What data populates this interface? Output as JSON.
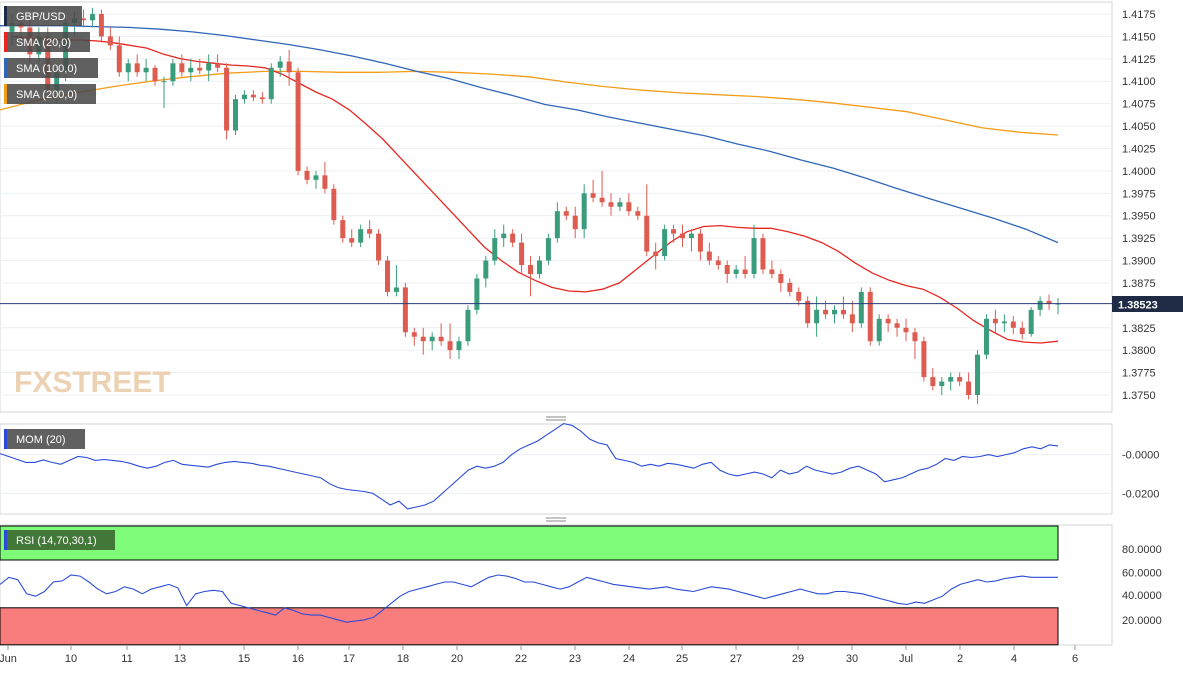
{
  "symbol": "GBP/USD",
  "watermark": "FXSTREET",
  "colors": {
    "up": "#3a9c7c",
    "down": "#de5b4f",
    "sma20": "#e8261f",
    "sma100": "#2f66b8",
    "sma200": "#f39c1a",
    "mom": "#2a4bd7",
    "rsi": "#2a4bd7",
    "price_line": "#2a3a7a",
    "overbought_zone": "#7dfb79",
    "oversold_zone": "#fa7d7d"
  },
  "legend": [
    {
      "label": "GBP/USD",
      "color": "#1e2a44"
    },
    {
      "label": "SMA (20,0)",
      "color": "#e8261f"
    },
    {
      "label": "SMA (100,0)",
      "color": "#2f66b8"
    },
    {
      "label": "SMA (200,0)",
      "color": "#f39c1a"
    }
  ],
  "current_price": "1.38523",
  "price_axis_ticks": [
    "1.4175",
    "1.4150",
    "1.4125",
    "1.4100",
    "1.4075",
    "1.4050",
    "1.4025",
    "1.4000",
    "1.3975",
    "1.3950",
    "1.3925",
    "1.3900",
    "1.3875",
    "1.3825",
    "1.3800",
    "1.3775",
    "1.3750"
  ],
  "mom_panel": {
    "label": "MOM (20)",
    "ticks": [
      "-0.0000",
      "-0.0200"
    ]
  },
  "rsi_panel": {
    "label": "RSI (14,70,30,1)",
    "ticks": [
      "80.0000",
      "60.0000",
      "40.0000",
      "20.0000"
    ]
  },
  "x_axis_labels": [
    "Jun",
    "10",
    "11",
    "13",
    "15",
    "16",
    "17",
    "18",
    "20",
    "22",
    "23",
    "24",
    "25",
    "27",
    "29",
    "30",
    "Jul",
    "2",
    "4",
    "6"
  ],
  "chart_data": {
    "type": "candlestick",
    "timeframe": "4h",
    "ylim": [
      1.3735,
      1.4185
    ],
    "ohlc": [
      [
        1.4155,
        1.4175,
        1.414,
        1.4165
      ],
      [
        1.4165,
        1.4178,
        1.415,
        1.416
      ],
      [
        1.416,
        1.417,
        1.412,
        1.413
      ],
      [
        1.413,
        1.416,
        1.412,
        1.415
      ],
      [
        1.415,
        1.416,
        1.408,
        1.409
      ],
      [
        1.409,
        1.412,
        1.4075,
        1.411
      ],
      [
        1.411,
        1.417,
        1.41,
        1.4165
      ],
      [
        1.4165,
        1.4178,
        1.415,
        1.417
      ],
      [
        1.417,
        1.418,
        1.416,
        1.4168
      ],
      [
        1.4168,
        1.4182,
        1.416,
        1.4175
      ],
      [
        1.4175,
        1.418,
        1.4145,
        1.415
      ],
      [
        1.415,
        1.416,
        1.4135,
        1.414
      ],
      [
        1.414,
        1.415,
        1.4105,
        1.411
      ],
      [
        1.411,
        1.4125,
        1.41,
        1.412
      ],
      [
        1.412,
        1.413,
        1.4105,
        1.411
      ],
      [
        1.411,
        1.4125,
        1.41,
        1.4115
      ],
      [
        1.4115,
        1.4118,
        1.4095,
        1.41
      ],
      [
        1.41,
        1.4105,
        1.407,
        1.41
      ],
      [
        1.41,
        1.4125,
        1.4095,
        1.412
      ],
      [
        1.412,
        1.413,
        1.4105,
        1.411
      ],
      [
        1.411,
        1.4125,
        1.41,
        1.4115
      ],
      [
        1.4115,
        1.4125,
        1.4108,
        1.4112
      ],
      [
        1.4112,
        1.413,
        1.41,
        1.412
      ],
      [
        1.412,
        1.413,
        1.411,
        1.4115
      ],
      [
        1.4115,
        1.412,
        1.4035,
        1.4045
      ],
      [
        1.4045,
        1.4085,
        1.404,
        1.408
      ],
      [
        1.408,
        1.409,
        1.4075,
        1.4085
      ],
      [
        1.4085,
        1.409,
        1.4078,
        1.4082
      ],
      [
        1.4082,
        1.4088,
        1.4075,
        1.408
      ],
      [
        1.408,
        1.412,
        1.4075,
        1.4115
      ],
      [
        1.4115,
        1.4128,
        1.4105,
        1.4122
      ],
      [
        1.4122,
        1.4135,
        1.4095,
        1.411
      ],
      [
        1.411,
        1.4115,
        1.3995,
        1.4
      ],
      [
        1.4,
        1.4005,
        1.3985,
        1.399
      ],
      [
        1.399,
        1.4,
        1.398,
        1.3995
      ],
      [
        1.3995,
        1.401,
        1.3975,
        1.398
      ],
      [
        1.398,
        1.3985,
        1.394,
        1.3945
      ],
      [
        1.3945,
        1.395,
        1.392,
        1.3925
      ],
      [
        1.3925,
        1.3935,
        1.3915,
        1.392
      ],
      [
        1.392,
        1.394,
        1.3915,
        1.3935
      ],
      [
        1.3935,
        1.3945,
        1.3925,
        1.393
      ],
      [
        1.393,
        1.3935,
        1.3895,
        1.39
      ],
      [
        1.39,
        1.3905,
        1.386,
        1.3865
      ],
      [
        1.3865,
        1.3895,
        1.386,
        1.387
      ],
      [
        1.387,
        1.3875,
        1.3815,
        1.382
      ],
      [
        1.382,
        1.3825,
        1.3805,
        1.3815
      ],
      [
        1.3815,
        1.3825,
        1.3795,
        1.381
      ],
      [
        1.381,
        1.382,
        1.38,
        1.3815
      ],
      [
        1.3815,
        1.383,
        1.3805,
        1.381
      ],
      [
        1.381,
        1.383,
        1.379,
        1.38
      ],
      [
        1.38,
        1.3815,
        1.379,
        1.381
      ],
      [
        1.381,
        1.385,
        1.3805,
        1.3845
      ],
      [
        1.3845,
        1.3885,
        1.384,
        1.388
      ],
      [
        1.388,
        1.3905,
        1.387,
        1.39
      ],
      [
        1.39,
        1.3935,
        1.3895,
        1.3925
      ],
      [
        1.3925,
        1.394,
        1.3915,
        1.393
      ],
      [
        1.393,
        1.3935,
        1.3915,
        1.392
      ],
      [
        1.392,
        1.393,
        1.3885,
        1.3895
      ],
      [
        1.3895,
        1.3905,
        1.386,
        1.3885
      ],
      [
        1.3885,
        1.3905,
        1.388,
        1.39
      ],
      [
        1.39,
        1.393,
        1.3895,
        1.3925
      ],
      [
        1.3925,
        1.3965,
        1.392,
        1.3955
      ],
      [
        1.3955,
        1.396,
        1.3945,
        1.395
      ],
      [
        1.395,
        1.396,
        1.3925,
        1.3935
      ],
      [
        1.3935,
        1.3985,
        1.3925,
        1.3975
      ],
      [
        1.3975,
        1.399,
        1.3965,
        1.397
      ],
      [
        1.397,
        1.4,
        1.396,
        1.3965
      ],
      [
        1.3965,
        1.3975,
        1.395,
        1.396
      ],
      [
        1.396,
        1.397,
        1.3955,
        1.3965
      ],
      [
        1.3965,
        1.3975,
        1.395,
        1.3955
      ],
      [
        1.3955,
        1.396,
        1.3945,
        1.395
      ],
      [
        1.395,
        1.3985,
        1.3905,
        1.391
      ],
      [
        1.391,
        1.392,
        1.389,
        1.3905
      ],
      [
        1.3905,
        1.394,
        1.39,
        1.3935
      ],
      [
        1.3935,
        1.394,
        1.392,
        1.393
      ],
      [
        1.393,
        1.394,
        1.3915,
        1.3925
      ],
      [
        1.3925,
        1.3935,
        1.391,
        1.393
      ],
      [
        1.393,
        1.3935,
        1.39,
        1.391
      ],
      [
        1.391,
        1.392,
        1.3895,
        1.39
      ],
      [
        1.39,
        1.3905,
        1.389,
        1.3895
      ],
      [
        1.3895,
        1.39,
        1.3875,
        1.3885
      ],
      [
        1.3885,
        1.3895,
        1.388,
        1.389
      ],
      [
        1.389,
        1.3905,
        1.388,
        1.3885
      ],
      [
        1.3885,
        1.394,
        1.388,
        1.3925
      ],
      [
        1.3925,
        1.393,
        1.3885,
        1.389
      ],
      [
        1.389,
        1.39,
        1.388,
        1.3885
      ],
      [
        1.3885,
        1.389,
        1.3865,
        1.3875
      ],
      [
        1.3875,
        1.388,
        1.386,
        1.3865
      ],
      [
        1.3865,
        1.387,
        1.385,
        1.3855
      ],
      [
        1.3855,
        1.386,
        1.3825,
        1.383
      ],
      [
        1.383,
        1.386,
        1.3815,
        1.3845
      ],
      [
        1.3845,
        1.3855,
        1.3835,
        1.384
      ],
      [
        1.384,
        1.385,
        1.383,
        1.3845
      ],
      [
        1.3845,
        1.386,
        1.3835,
        1.384
      ],
      [
        1.384,
        1.3855,
        1.382,
        1.383
      ],
      [
        1.383,
        1.387,
        1.3825,
        1.3865
      ],
      [
        1.3865,
        1.387,
        1.3805,
        1.381
      ],
      [
        1.381,
        1.384,
        1.3805,
        1.3835
      ],
      [
        1.3835,
        1.384,
        1.382,
        1.383
      ],
      [
        1.383,
        1.3835,
        1.3815,
        1.3825
      ],
      [
        1.3825,
        1.3835,
        1.381,
        1.382
      ],
      [
        1.382,
        1.3825,
        1.379,
        1.381
      ],
      [
        1.381,
        1.3815,
        1.3765,
        1.377
      ],
      [
        1.377,
        1.378,
        1.3755,
        1.376
      ],
      [
        1.376,
        1.377,
        1.375,
        1.3765
      ],
      [
        1.3765,
        1.3775,
        1.3755,
        1.377
      ],
      [
        1.377,
        1.3775,
        1.376,
        1.3765
      ],
      [
        1.3765,
        1.3775,
        1.3745,
        1.375
      ],
      [
        1.375,
        1.38,
        1.374,
        1.3795
      ],
      [
        1.3795,
        1.384,
        1.379,
        1.3835
      ],
      [
        1.3835,
        1.3845,
        1.382,
        1.383
      ],
      [
        1.383,
        1.384,
        1.382,
        1.3832
      ],
      [
        1.3832,
        1.3838,
        1.3818,
        1.3825
      ],
      [
        1.3825,
        1.3832,
        1.3812,
        1.3818
      ],
      [
        1.3818,
        1.3848,
        1.3815,
        1.3845
      ],
      [
        1.3845,
        1.386,
        1.3838,
        1.3855
      ],
      [
        1.3855,
        1.3862,
        1.3845,
        1.3852
      ],
      [
        1.3852,
        1.3858,
        1.384,
        1.3852
      ]
    ],
    "sma20": [
      1.415,
      1.4148,
      1.4147,
      1.4146,
      1.4146,
      1.4145,
      1.4143,
      1.414,
      1.4137,
      1.413,
      1.4125,
      1.4122,
      1.412,
      1.4118,
      1.4117,
      1.4115,
      1.4108,
      1.4098,
      1.4088,
      1.408,
      1.4068,
      1.4052,
      1.4035,
      1.4015,
      1.3995,
      1.3975,
      1.3955,
      1.3935,
      1.3915,
      1.39,
      1.3887,
      1.3878,
      1.387,
      1.3866,
      1.3865,
      1.3868,
      1.3875,
      1.389,
      1.3905,
      1.392,
      1.3932,
      1.3938,
      1.3939,
      1.3937,
      1.3936,
      1.3936,
      1.3932,
      1.3927,
      1.392,
      1.391,
      1.3897,
      1.3886,
      1.3878,
      1.3872,
      1.3868,
      1.3859,
      1.3847,
      1.3833,
      1.3822,
      1.3812,
      1.3809,
      1.3808,
      1.381
    ],
    "sma100": [
      1.4162,
      1.4162,
      1.4162,
      1.4161,
      1.416,
      1.4158,
      1.4155,
      1.4151,
      1.4146,
      1.4141,
      1.4135,
      1.4128,
      1.412,
      1.4111,
      1.4103,
      1.4093,
      1.4084,
      1.4074,
      1.4068,
      1.406,
      1.4053,
      1.4046,
      1.4039,
      1.403,
      1.4022,
      1.4012,
      1.4003,
      1.3992,
      1.398,
      1.3969,
      1.3958,
      1.3947,
      1.3935,
      1.392
    ],
    "sma200": [
      1.4068,
      1.4079,
      1.4087,
      1.4094,
      1.41,
      1.4105,
      1.4109,
      1.4111,
      1.4111,
      1.411,
      1.411,
      1.4111,
      1.411,
      1.4108,
      1.4105,
      1.4099,
      1.4094,
      1.409,
      1.4087,
      1.4085,
      1.4083,
      1.408,
      1.4076,
      1.4071,
      1.4066,
      1.4057,
      1.4048,
      1.4043,
      1.404
    ],
    "mom": [
      0.0005,
      -0.001,
      -0.0025,
      -0.004,
      -0.004,
      -0.0028,
      -0.004,
      -0.005,
      -0.003,
      -0.001,
      -0.0015,
      -0.003,
      -0.0025,
      -0.003,
      -0.0035,
      -0.0045,
      -0.006,
      -0.007,
      -0.006,
      -0.004,
      -0.003,
      -0.005,
      -0.0055,
      -0.006,
      -0.0065,
      -0.005,
      -0.004,
      -0.0035,
      -0.004,
      -0.0045,
      -0.0055,
      -0.006,
      -0.007,
      -0.008,
      -0.009,
      -0.01,
      -0.011,
      -0.012,
      -0.015,
      -0.017,
      -0.018,
      -0.0185,
      -0.019,
      -0.02,
      -0.023,
      -0.026,
      -0.024,
      -0.028,
      -0.027,
      -0.026,
      -0.024,
      -0.02,
      -0.016,
      -0.012,
      -0.008,
      -0.006,
      -0.007,
      -0.006,
      -0.004,
      0.0,
      0.003,
      0.005,
      0.007,
      0.01,
      0.013,
      0.016,
      0.015,
      0.012,
      0.008,
      0.006,
      0.005,
      -0.002,
      -0.003,
      -0.004,
      -0.006,
      -0.005,
      -0.006,
      -0.0045,
      -0.005,
      -0.006,
      -0.007,
      -0.005,
      -0.004,
      -0.008,
      -0.01,
      -0.011,
      -0.01,
      -0.009,
      -0.01,
      -0.012,
      -0.008,
      -0.01,
      -0.009,
      -0.006,
      -0.008,
      -0.009,
      -0.01,
      -0.009,
      -0.007,
      -0.006,
      -0.008,
      -0.01,
      -0.014,
      -0.013,
      -0.012,
      -0.01,
      -0.008,
      -0.007,
      -0.005,
      -0.002,
      -0.003,
      -0.001,
      -0.0015,
      -0.001,
      0.0,
      -0.001,
      0.0,
      0.001,
      0.003,
      0.004,
      0.003,
      0.005,
      0.0045
    ],
    "rsi": [
      50,
      56,
      54,
      42,
      40,
      44,
      52,
      53,
      58,
      57,
      52,
      46,
      42,
      44,
      48,
      46,
      42,
      46,
      48,
      50,
      47,
      32,
      42,
      44,
      45,
      44,
      34,
      32,
      30,
      28,
      26,
      24,
      30,
      28,
      25,
      24,
      24,
      22,
      20,
      18,
      19,
      20,
      22,
      28,
      34,
      40,
      44,
      46,
      48,
      50,
      52,
      52,
      50,
      48,
      52,
      56,
      58,
      57,
      55,
      52,
      52,
      50,
      48,
      46,
      48,
      52,
      56,
      54,
      52,
      50,
      49,
      48,
      47,
      46,
      47,
      48,
      46,
      45,
      44,
      46,
      48,
      47,
      46,
      44,
      42,
      40,
      38,
      40,
      42,
      44,
      46,
      44,
      42,
      42,
      44,
      44,
      43,
      42,
      40,
      38,
      36,
      34,
      33,
      35,
      34,
      37,
      40,
      46,
      50,
      52,
      54,
      52,
      53,
      55,
      56,
      57,
      56,
      56,
      56,
      56
    ]
  }
}
